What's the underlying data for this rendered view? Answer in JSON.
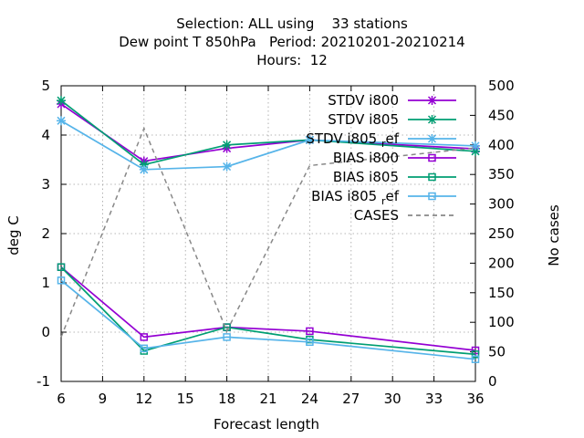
{
  "chart_data": {
    "type": "line",
    "title_lines": [
      "Selection: ALL using    33 stations",
      "Dew point T 850hPa   Period: 20210201-20210214",
      "Hours:  12"
    ],
    "xlabel": "Forecast length",
    "ylabel": "deg C",
    "y2label": "No cases",
    "x_ticks": [
      6,
      9,
      12,
      15,
      18,
      21,
      24,
      27,
      30,
      33,
      36
    ],
    "y_ticks": [
      -1,
      0,
      1,
      2,
      3,
      4,
      5
    ],
    "y2_ticks": [
      0,
      50,
      100,
      150,
      200,
      250,
      300,
      350,
      400,
      450,
      500
    ],
    "xlim": [
      6,
      36
    ],
    "ylim": [
      -1,
      5
    ],
    "y2lim": [
      0,
      500
    ],
    "grid": true,
    "legend_position": "top-right",
    "series": [
      {
        "name": "STDV i800",
        "axis": "y",
        "color": "#9400d3",
        "marker": "x",
        "dash": false,
        "x": [
          6,
          12,
          18,
          24,
          36
        ],
        "values": [
          4.63,
          3.47,
          3.73,
          3.9,
          3.72
        ]
      },
      {
        "name": "STDV i805",
        "axis": "y",
        "color": "#009e73",
        "marker": "x",
        "dash": false,
        "x": [
          6,
          12,
          18,
          24,
          36
        ],
        "values": [
          4.7,
          3.4,
          3.8,
          3.9,
          3.67
        ]
      },
      {
        "name": "STDV i805_ref",
        "axis": "y",
        "color": "#56b4e9",
        "marker": "x",
        "dash": false,
        "x": [
          6,
          12,
          18,
          24,
          36
        ],
        "values": [
          4.29,
          3.3,
          3.36,
          3.9,
          3.78
        ]
      },
      {
        "name": "BIAS i800",
        "axis": "y",
        "color": "#9400d3",
        "marker": "square",
        "dash": false,
        "x": [
          6,
          12,
          18,
          24,
          36
        ],
        "values": [
          1.32,
          -0.1,
          0.1,
          0.02,
          -0.37
        ]
      },
      {
        "name": "BIAS i805",
        "axis": "y",
        "color": "#009e73",
        "marker": "square",
        "dash": false,
        "x": [
          6,
          12,
          18,
          24,
          36
        ],
        "values": [
          1.32,
          -0.38,
          0.1,
          -0.15,
          -0.45
        ]
      },
      {
        "name": "BIAS i805_ref",
        "axis": "y",
        "color": "#56b4e9",
        "marker": "square",
        "dash": false,
        "x": [
          6,
          12,
          18,
          24,
          36
        ],
        "values": [
          1.05,
          -0.33,
          -0.1,
          -0.2,
          -0.55
        ]
      },
      {
        "name": "CASES",
        "axis": "y2",
        "color": "#888888",
        "marker": "none",
        "dash": true,
        "x": [
          6,
          12,
          18,
          24,
          36
        ],
        "values": [
          75,
          428,
          85,
          365,
          395
        ]
      }
    ],
    "legend_labels": [
      {
        "base": "STDV i805",
        "sub": "r",
        "rest": "ef"
      },
      {
        "base": "BIAS i805",
        "sub": "r",
        "rest": "ef"
      }
    ]
  }
}
